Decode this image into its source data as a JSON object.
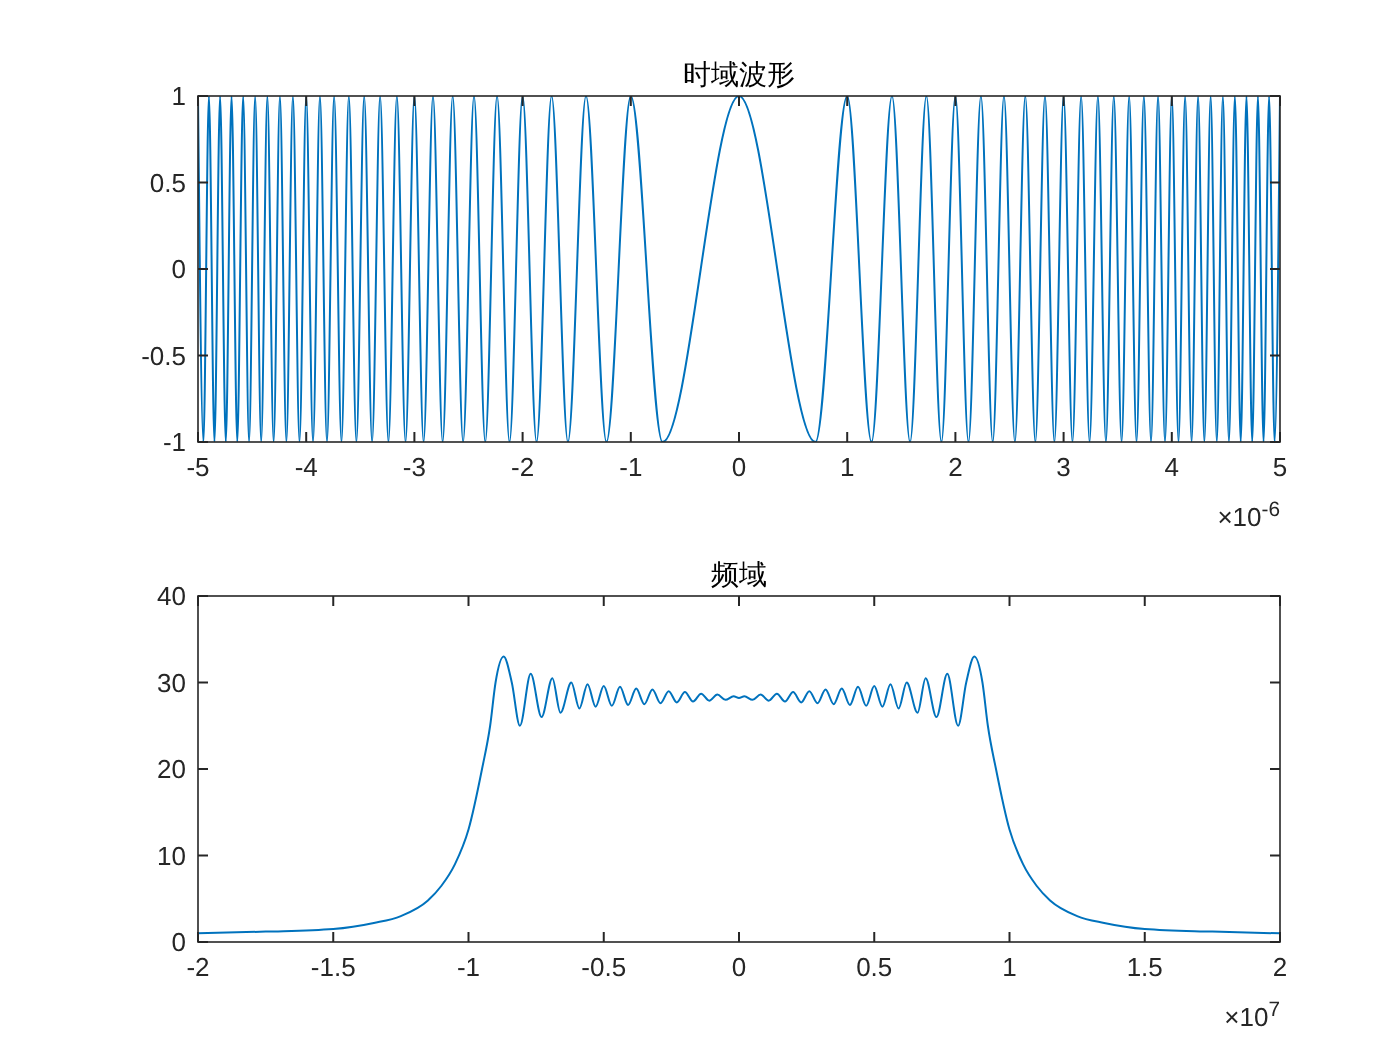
{
  "chart_data": [
    {
      "type": "line",
      "title": "时域波形",
      "color": "#0072bd",
      "xlim": [
        -5,
        5
      ],
      "ylim": [
        -1,
        1
      ],
      "xticks": [
        -5,
        -4,
        -3,
        -2,
        -1,
        0,
        1,
        2,
        3,
        4,
        5
      ],
      "yticks": [
        -1,
        -0.5,
        0,
        0.5,
        1
      ],
      "annotations": [
        "×10$^{-6}$"
      ],
      "x": [
        -5,
        -4.95,
        -4.899,
        -4.848,
        -4.796,
        -4.743,
        -4.69,
        -4.637,
        -4.583,
        -4.528,
        -4.472,
        -4.416,
        -4.359,
        -4.301,
        -4.243,
        -4.183,
        -4.123,
        -4.062,
        -4,
        -3.937,
        -3.873,
        -3.808,
        -3.742,
        -3.674,
        -3.606,
        -3.536,
        -3.464,
        -3.391,
        -3.317,
        -3.24,
        -3.162,
        -3.082,
        -3,
        -2.915,
        -2.828,
        -2.739,
        -2.646,
        -2.55,
        -2.449,
        -2.345,
        -2.236,
        -2.121,
        -2,
        -1.871,
        -1.732,
        -1.581,
        -1.414,
        -1.225,
        -1,
        -0.707,
        0,
        0.707,
        1,
        1.225,
        1.414,
        1.581,
        1.732,
        1.871,
        2,
        2.121,
        2.236,
        2.345,
        2.449,
        2.55,
        2.646,
        2.739,
        2.828,
        2.915,
        3,
        3.082,
        3.162,
        3.24,
        3.317,
        3.391,
        3.464,
        3.536,
        3.606,
        3.674,
        3.742,
        3.808,
        3.873,
        3.937,
        4,
        4.062,
        4.123,
        4.183,
        4.243,
        4.301,
        4.359,
        4.416,
        4.472,
        4.528,
        4.583,
        4.637,
        4.69,
        4.743,
        4.796,
        4.848,
        4.899,
        4.95,
        5
      ],
      "values": [
        1,
        -1,
        1,
        -1,
        1,
        -1,
        1,
        -1,
        1,
        -1,
        1,
        -1,
        1,
        -1,
        1,
        -1,
        1,
        -1,
        1,
        -1,
        1,
        -1,
        1,
        -1,
        1,
        -1,
        1,
        -1,
        1,
        -1,
        1,
        -1,
        1,
        -1,
        1,
        -1,
        1,
        -1,
        1,
        -1,
        1,
        -1,
        1,
        -1,
        1,
        -1,
        1,
        -1,
        1,
        -1,
        1,
        -1,
        1,
        -1,
        1,
        -1,
        1,
        -1,
        1,
        -1,
        1,
        -1,
        1,
        -1,
        1,
        -1,
        1,
        -1,
        1,
        -1,
        1,
        -1,
        1,
        -1,
        1,
        -1,
        1,
        -1,
        1,
        -1,
        1,
        -1,
        1,
        -1,
        1,
        -1,
        1,
        -1,
        1,
        -1,
        1,
        -1,
        1,
        -1,
        1,
        -1,
        1,
        -1,
        1,
        -1,
        1
      ]
    },
    {
      "type": "line",
      "title": "频域",
      "color": "#0072bd",
      "xlim": [
        -2,
        2
      ],
      "ylim": [
        0,
        40
      ],
      "xticks": [
        -2,
        -1.5,
        -1,
        -0.5,
        0,
        0.5,
        1,
        1.5,
        2
      ],
      "yticks": [
        0,
        10,
        20,
        30,
        40
      ],
      "annotations": [
        "×10$^{7}$"
      ],
      "x": [
        -2,
        -1.75,
        -1.5,
        -1.35,
        -1.25,
        -1.15,
        -1.1,
        -1.05,
        -1,
        -0.95,
        -0.92,
        -0.9,
        -0.87,
        -0.84,
        -0.81,
        -0.77,
        -0.73,
        -0.69,
        -0.66,
        -0.62,
        -0.59,
        -0.56,
        -0.53,
        -0.5,
        -0.47,
        -0.44,
        -0.41,
        -0.38,
        -0.35,
        -0.32,
        -0.29,
        -0.26,
        -0.23,
        -0.2,
        -0.17,
        -0.14,
        -0.11,
        -0.08,
        -0.05,
        -0.02,
        0,
        0.02,
        0.05,
        0.08,
        0.11,
        0.14,
        0.17,
        0.2,
        0.23,
        0.26,
        0.29,
        0.32,
        0.35,
        0.38,
        0.41,
        0.44,
        0.47,
        0.5,
        0.53,
        0.56,
        0.59,
        0.62,
        0.66,
        0.69,
        0.73,
        0.77,
        0.81,
        0.84,
        0.87,
        0.9,
        0.92,
        0.95,
        1,
        1.05,
        1.1,
        1.15,
        1.25,
        1.35,
        1.5,
        1.75,
        2
      ],
      "values": [
        1,
        1.2,
        1.5,
        2.2,
        3,
        4.8,
        6.5,
        9,
        13,
        20,
        25,
        30,
        33,
        30,
        25,
        31,
        26,
        30.5,
        26.5,
        30,
        27,
        29.8,
        27.2,
        29.6,
        27.3,
        29.5,
        27.4,
        29.3,
        27.5,
        29.2,
        27.6,
        29,
        27.7,
        28.9,
        27.8,
        28.7,
        27.9,
        28.6,
        28,
        28.4,
        28.2,
        28.4,
        28,
        28.6,
        27.9,
        28.7,
        27.8,
        28.9,
        27.7,
        29,
        27.6,
        29.2,
        27.5,
        29.3,
        27.4,
        29.5,
        27.3,
        29.6,
        27.2,
        29.8,
        27,
        30,
        26.5,
        30.5,
        26,
        31,
        25,
        30,
        33,
        30,
        25,
        20,
        13,
        9,
        6.5,
        4.8,
        3,
        2.2,
        1.5,
        1.2,
        1
      ]
    }
  ]
}
